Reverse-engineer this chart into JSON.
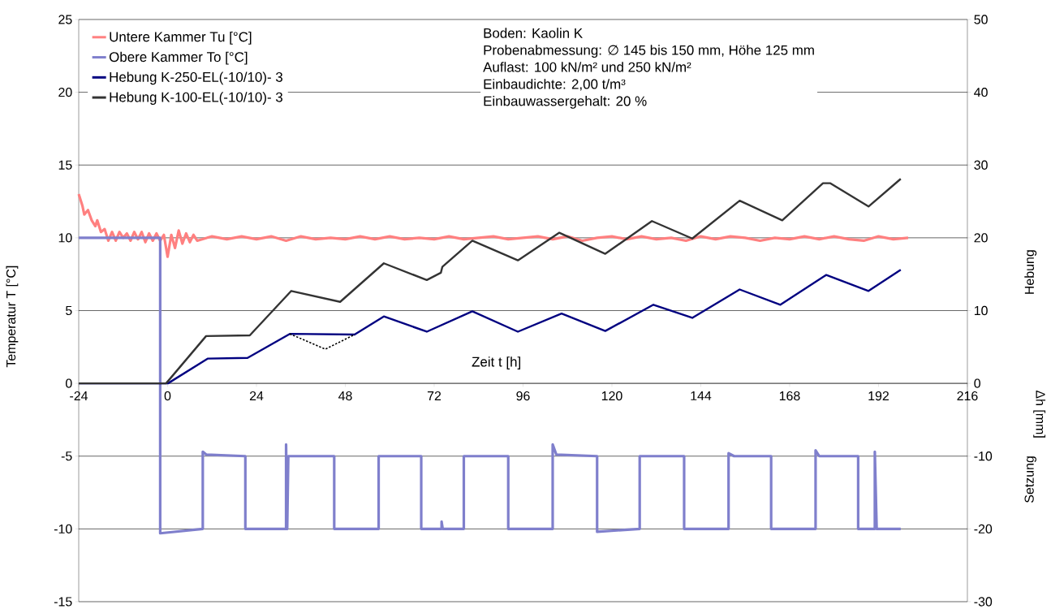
{
  "chart_data": {
    "type": "line",
    "xlabel": "Zeit t [h]",
    "ylabel": "Temperatur T [°C]",
    "y2label": "Δh [mm]",
    "annotations": [
      "Boden: Kaolin K",
      "Probenabmessung: ∅ 145 bis 150 mm, Höhe 125 mm",
      "Auflast: 100 kN/m² und 250 kN/m²",
      "Einbaudichte: 2,00 t/m³",
      "Einbauwassergehalt: 20 %",
      "Hebung",
      "Setzung"
    ],
    "xlim": [
      -24,
      216
    ],
    "xticks": [
      -24,
      0,
      24,
      48,
      72,
      96,
      120,
      144,
      168,
      192,
      216
    ],
    "ylim": [
      -15,
      25
    ],
    "yticks": [
      -15,
      -10,
      -5,
      0,
      5,
      10,
      15,
      20,
      25
    ],
    "y2lim": [
      -30,
      50
    ],
    "y2ticks": [
      -30,
      -20,
      -10,
      0,
      10,
      20,
      30,
      40,
      50
    ],
    "grid": "y",
    "legend": "top left",
    "series": [
      {
        "name": "Untere Kammer Tu [°C]",
        "color": "#ff8080",
        "axis": "y",
        "line_style": "solid",
        "x": [
          -24,
          -23,
          -22.5,
          -21.5,
          -20.5,
          -19.5,
          -19,
          -18,
          -17,
          -16,
          -15,
          -14,
          -13,
          -12,
          -11,
          -10,
          -9,
          -8,
          -7,
          -6,
          -5,
          -4,
          -3,
          -2,
          -1,
          0,
          1,
          2,
          3,
          4,
          5,
          6,
          7,
          8,
          12,
          16,
          20,
          24,
          28,
          32,
          36,
          40,
          44,
          48,
          52,
          56,
          60,
          64,
          68,
          72,
          76,
          80,
          84,
          88,
          92,
          96,
          100,
          104,
          108,
          112,
          116,
          120,
          124,
          128,
          132,
          136,
          140,
          144,
          148,
          152,
          156,
          160,
          164,
          168,
          172,
          176,
          180,
          184,
          188,
          192,
          196,
          200
        ],
        "values": [
          13.0,
          12.2,
          11.6,
          11.9,
          11.2,
          10.8,
          11.2,
          10.4,
          10.6,
          9.8,
          10.4,
          9.8,
          10.4,
          10.0,
          10.3,
          9.8,
          10.4,
          9.9,
          10.4,
          9.7,
          10.3,
          9.8,
          10.3,
          9.8,
          10.2,
          8.7,
          10.2,
          9.3,
          10.5,
          9.6,
          10.3,
          9.7,
          10.2,
          9.8,
          10.1,
          9.9,
          10.1,
          9.9,
          10.1,
          9.8,
          10.1,
          9.9,
          10.0,
          9.9,
          10.1,
          9.9,
          10.1,
          9.9,
          10.0,
          9.9,
          10.1,
          9.9,
          10.0,
          10.1,
          9.9,
          10.0,
          10.1,
          9.9,
          10.1,
          9.8,
          10.0,
          10.1,
          9.9,
          10.1,
          9.9,
          10.0,
          9.8,
          10.1,
          9.9,
          10.1,
          10.0,
          9.8,
          10.0,
          9.9,
          10.1,
          9.9,
          10.1,
          9.9,
          9.8,
          10.1,
          9.9,
          10.0
        ]
      },
      {
        "name": "Obere Kammer To [°C]",
        "color": "#7f7fcc",
        "axis": "y",
        "line_style": "solid",
        "x": [
          -24,
          -2,
          -2,
          9.5,
          9.5,
          10.5,
          21,
          21,
          32,
          32,
          32.3,
          32.6,
          45,
          45,
          57,
          57,
          68.5,
          68.5,
          74,
          74,
          74.3,
          80,
          80,
          92,
          92,
          104,
          104,
          105,
          116,
          116,
          127.5,
          127.5,
          139.5,
          139.5,
          151.5,
          151.5,
          153,
          163,
          163,
          175,
          175,
          176,
          186.5,
          186.5,
          191,
          191,
          191.5,
          198
        ],
        "values": [
          10,
          10,
          -10.3,
          -10,
          -4.7,
          -4.9,
          -5,
          -10,
          -10,
          -4.2,
          -10,
          -5,
          -5,
          -10,
          -10,
          -5,
          -5,
          -10,
          -10,
          -9.5,
          -10,
          -10,
          -5,
          -5,
          -10,
          -10,
          -4.2,
          -4.9,
          -5,
          -10.2,
          -10,
          -5,
          -5,
          -10,
          -10,
          -4.8,
          -5,
          -5,
          -10,
          -10,
          -4.6,
          -5,
          -5,
          -10,
          -10,
          -4.7,
          -10,
          -10
        ]
      },
      {
        "name": "Hebung K-250-EL(-10/10)- 3",
        "color": "#000080",
        "axis": "y2",
        "line_style": "solid",
        "x": [
          -24,
          0.1,
          10.8,
          21.6,
          33,
          50.5,
          58.4,
          70,
          82.3,
          94.6,
          106.4,
          118.2,
          131.2,
          141.7,
          154.5,
          165.5,
          177.9,
          189.3,
          198
        ],
        "values": [
          0,
          0,
          3.4,
          3.5,
          6.8,
          6.7,
          9.2,
          7.1,
          9.9,
          7.1,
          9.6,
          7.2,
          10.8,
          9.0,
          12.9,
          10.8,
          14.9,
          12.7,
          15.6
        ]
      },
      {
        "name": "Hebung K-100-EL(-10/10)- 3",
        "color": "#333333",
        "axis": "y2",
        "line_style": "solid",
        "x": [
          -24,
          -0.4,
          10.4,
          22.2,
          33.4,
          46.6,
          58.4,
          70,
          73.8,
          74.2,
          82.3,
          94.6,
          105.8,
          118.2,
          130.8,
          141.7,
          154.5,
          166,
          177,
          179,
          189.3,
          198
        ],
        "values": [
          0,
          0,
          6.5,
          6.6,
          12.7,
          11.2,
          16.5,
          14.2,
          15.2,
          16.0,
          19.6,
          16.9,
          20.7,
          17.8,
          22.3,
          19.9,
          25.1,
          22.4,
          27.5,
          27.5,
          24.3,
          28.1
        ]
      },
      {
        "color": "#000000",
        "axis": "y2",
        "line_style": "dotted",
        "x": [
          33,
          42.6,
          50.5
        ],
        "values": [
          6.8,
          4.7,
          6.7
        ]
      }
    ]
  }
}
